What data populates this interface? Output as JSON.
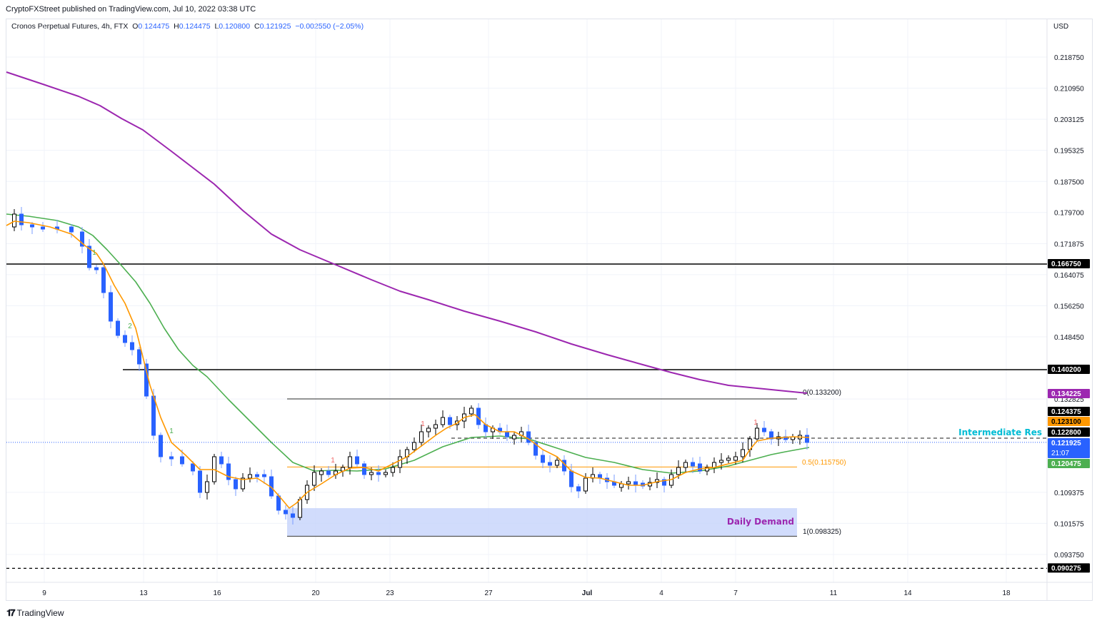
{
  "header": {
    "publisher": "CryptoFXStreet published on TradingView.com, Jul 10, 2022 03:38 UTC"
  },
  "legend": {
    "symbol": "Cronos Perpetual Futures, 4h, FTX",
    "o_label": "O",
    "o": "0.124475",
    "h_label": "H",
    "h": "0.124475",
    "l_label": "L",
    "l": "0.120800",
    "c_label": "C",
    "c": "0.121925",
    "change": "−0.002550 (−2.05%)"
  },
  "footer": {
    "brand": "TradingView",
    "logo_icon": "tradingview-logo-icon"
  },
  "colors": {
    "up_candle": "#ffffff",
    "down_candle": "#2962ff",
    "ema_fast": "#ff9800",
    "ema_mid": "#4caf50",
    "ma_slow": "#9c27b0",
    "demand_zone": "#c5d3fb",
    "demand_text": "#9c27b0",
    "intermediate_res": "#00bcd4"
  },
  "chart_data": {
    "type": "candlestick",
    "title": "Cronos Perpetual Futures, 4h, FTX",
    "currency": "USD",
    "ylim": [
      0.0875,
      0.2245
    ],
    "y_ticks": [
      "0.218750",
      "0.210950",
      "0.203125",
      "0.195325",
      "0.187500",
      "0.179700",
      "0.171875",
      "0.164075",
      "0.156250",
      "0.148450",
      "0.132825",
      "0.109375",
      "0.101575",
      "0.093750"
    ],
    "x_ticks": [
      "9",
      "13",
      "16",
      "20",
      "23",
      "27",
      "Jul",
      "4",
      "7",
      "11",
      "14",
      "18"
    ],
    "ohlc_last": {
      "open": 0.124475,
      "high": 0.124475,
      "low": 0.1208,
      "close": 0.121925,
      "change": -0.00255,
      "change_pct": -2.05
    },
    "horizontal_levels": [
      {
        "name": "resistance-1",
        "value": 0.16675,
        "label": "0.166750",
        "style": "solid",
        "color": "#000000"
      },
      {
        "name": "resistance-2",
        "value": 0.1402,
        "label": "0.140200",
        "style": "solid",
        "color": "#000000"
      },
      {
        "name": "intermediate-res",
        "value": 0.1228,
        "label": "0.122800",
        "text": "Intermediate Res",
        "style": "dashed",
        "color": "#555555"
      },
      {
        "name": "support-low",
        "value": 0.090275,
        "label": "0.090275",
        "style": "dashed",
        "color": "#000000"
      }
    ],
    "fib": [
      {
        "level": "0",
        "value": 0.1332,
        "text": "0(0.133200)"
      },
      {
        "level": "0.5",
        "value": 0.11575,
        "text": "0.5(0.115750)"
      },
      {
        "level": "1",
        "value": 0.098325,
        "text": "1(0.098325)"
      }
    ],
    "zones": [
      {
        "name": "Daily Demand",
        "text": "Daily Demand",
        "top": 0.1054,
        "bottom": 0.0983
      }
    ],
    "price_labels": [
      {
        "value": 0.134225,
        "text": "0.134225",
        "bg": "#9c27b0",
        "fg": "#ffffff",
        "series": "MA slow"
      },
      {
        "value": 0.124375,
        "text": "0.124375",
        "bg": "#000000",
        "fg": "#ffffff",
        "series": "level"
      },
      {
        "value": 0.1231,
        "text": "0.123100",
        "bg": "#ff9800",
        "fg": "#000000",
        "series": "EMA fast"
      },
      {
        "value": 0.1228,
        "text": "0.122800",
        "bg": "#000000",
        "fg": "#ffffff",
        "series": "Intermediate Res"
      },
      {
        "value": 0.121925,
        "text": "0.121925",
        "sub": "21:07",
        "bg": "#2962ff",
        "fg": "#ffffff",
        "series": "last price"
      },
      {
        "value": 0.120475,
        "text": "0.120475",
        "bg": "#4caf50",
        "fg": "#ffffff",
        "series": "EMA mid"
      }
    ],
    "series": [
      {
        "name": "MA slow (purple)",
        "values_approx": [
          0.215,
          0.206,
          0.196,
          0.176,
          0.164,
          0.156,
          0.15,
          0.143,
          0.1395,
          0.1342
        ]
      },
      {
        "name": "EMA mid (green)",
        "values_approx": [
          0.1795,
          0.1775,
          0.16,
          0.136,
          0.124,
          0.115,
          0.119,
          0.124,
          0.116,
          0.1205
        ]
      },
      {
        "name": "EMA fast (orange)",
        "values_approx": [
          0.177,
          0.173,
          0.148,
          0.117,
          0.104,
          0.116,
          0.13,
          0.116,
          0.112,
          0.1231
        ]
      }
    ],
    "annotations": [
      "1",
      "2",
      "1",
      "1",
      "1",
      "1"
    ]
  }
}
